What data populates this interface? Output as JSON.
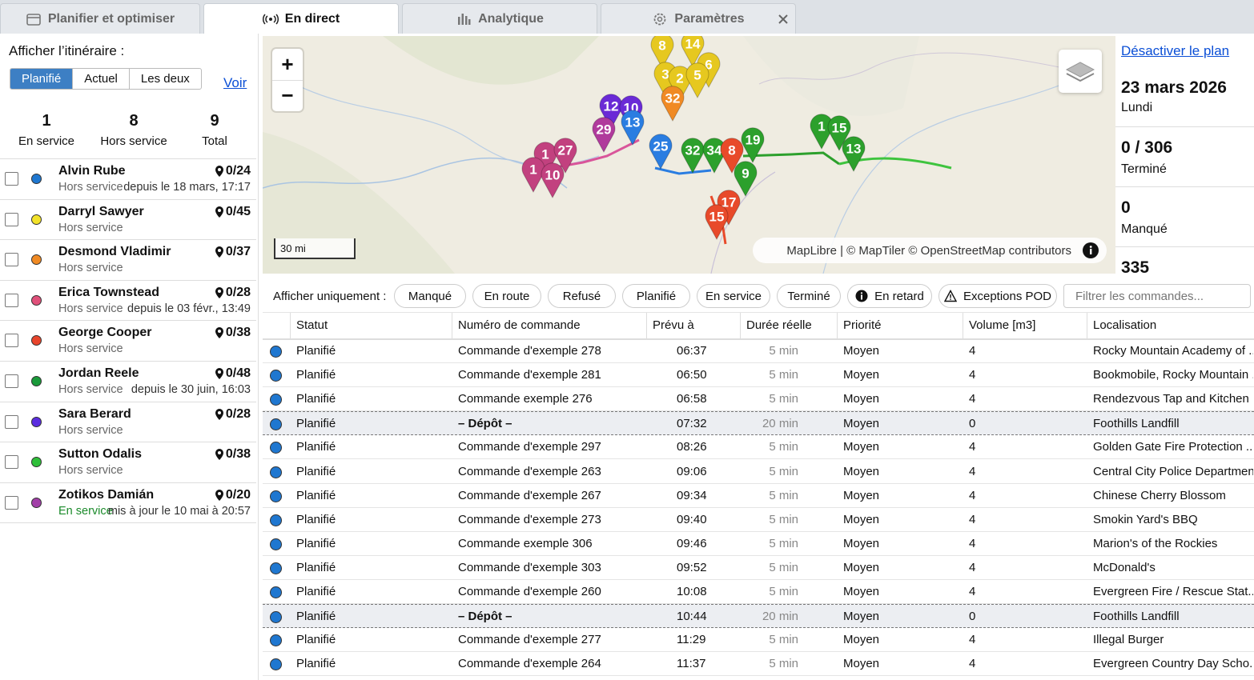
{
  "tabs": [
    "Planifier et optimiser",
    "En direct",
    "Analytique",
    "Paramètres"
  ],
  "active_tab": 1,
  "sidebar": {
    "route_label": "Afficher l’itinéraire :",
    "route_toggle": [
      "Planifié",
      "Actuel",
      "Les deux"
    ],
    "route_toggle_active": 0,
    "view_link": "Voir",
    "stats": [
      {
        "value": 1,
        "label": "En service"
      },
      {
        "value": 8,
        "label": "Hors service"
      },
      {
        "value": 9,
        "label": "Total"
      }
    ],
    "drivers": [
      {
        "name": "Alvin Rube",
        "stops": "0/24",
        "status": "Hors service",
        "since": "depuis le 18 mars, 17:17",
        "color": "#1f77d0"
      },
      {
        "name": "Darryl Sawyer",
        "stops": "0/45",
        "status": "Hors service",
        "color": "#f2e22a"
      },
      {
        "name": "Desmond Vladimir",
        "stops": "0/37",
        "status": "Hors service",
        "color": "#f08a24"
      },
      {
        "name": "Erica Townstead",
        "stops": "0/28",
        "status": "Hors service",
        "since": "depuis le 03 févr., 13:49",
        "color": "#e0507a"
      },
      {
        "name": "George Cooper",
        "stops": "0/38",
        "status": "Hors service",
        "color": "#e8452c"
      },
      {
        "name": "Jordan Reele",
        "stops": "0/48",
        "status": "Hors service",
        "since": "depuis le 30 juin, 16:03",
        "color": "#1a9a3a"
      },
      {
        "name": "Sara Berard",
        "stops": "0/28",
        "status": "Hors service",
        "color": "#5b2de0"
      },
      {
        "name": "Sutton Odalis",
        "stops": "0/38",
        "status": "Hors service",
        "color": "#2fbf3a"
      },
      {
        "name": "Zotikos Damián",
        "stops": "0/20",
        "status": "En service",
        "since": "mis à jour le 10 mai à 20:57",
        "color": "#a23fa8"
      }
    ]
  },
  "map": {
    "zoom_in": "+",
    "zoom_out": "−",
    "scale": "30 mi",
    "attribution": "MapLibre | © MapTiler © OpenStreetMap contributors",
    "markers": [
      {
        "label": "8",
        "color": "#e6c81f"
      },
      {
        "label": "14",
        "color": "#e6c81f"
      },
      {
        "label": "3",
        "color": "#e6c81f"
      },
      {
        "label": "6",
        "color": "#e6c81f"
      },
      {
        "label": "2",
        "color": "#e6c81f"
      },
      {
        "label": "5",
        "color": "#e6c81f"
      },
      {
        "label": "12",
        "color": "#6a2ad6"
      },
      {
        "label": "10",
        "color": "#6a2ad6"
      },
      {
        "label": "32",
        "color": "#f08a24"
      },
      {
        "label": "29",
        "color": "#b03a9c"
      },
      {
        "label": "13",
        "color": "#2a7de1"
      },
      {
        "label": "25",
        "color": "#2a7de1"
      },
      {
        "label": "1",
        "color": "#c2417f"
      },
      {
        "label": "27",
        "color": "#c2417f"
      },
      {
        "label": "1",
        "color": "#c2417f"
      },
      {
        "label": "10",
        "color": "#c2417f"
      },
      {
        "label": "19",
        "color": "#2ca02c"
      },
      {
        "label": "32",
        "color": "#2ca02c"
      },
      {
        "label": "34",
        "color": "#2ca02c"
      },
      {
        "label": "8",
        "color": "#e84a2a"
      },
      {
        "label": "9",
        "color": "#2ca02c"
      },
      {
        "label": "17",
        "color": "#e84a2a"
      },
      {
        "label": "15",
        "color": "#e84a2a"
      },
      {
        "label": "1",
        "color": "#2ca02c"
      },
      {
        "label": "15",
        "color": "#2ca02c"
      },
      {
        "label": "13",
        "color": "#2ca02c"
      }
    ]
  },
  "summary": {
    "disable_link": "Désactiver le plan",
    "date": "23 mars 2026",
    "weekday": "Lundi",
    "items": [
      {
        "value": "0 / 306",
        "label": "Terminé"
      },
      {
        "value": "0",
        "label": "Manqué"
      },
      {
        "value": "335"
      }
    ]
  },
  "filters": {
    "label": "Afficher uniquement :",
    "buttons": [
      "Manqué",
      "En route",
      "Refusé",
      "Planifié",
      "En service",
      "Terminé",
      "En retard",
      "Exceptions POD"
    ],
    "search_placeholder": "Filtrer les commandes..."
  },
  "table": {
    "headers": [
      "Statut",
      "Numéro de commande",
      "Prévu à",
      "Durée réelle",
      "Priorité",
      "Volume [m3]",
      "Localisation"
    ],
    "rows": [
      [
        "Planifié",
        "Commande d'exemple 278",
        "06:37",
        "5 min",
        "Moyen",
        "4",
        "Rocky Mountain Academy of ..."
      ],
      [
        "Planifié",
        "Commande d'exemple 281",
        "06:50",
        "5 min",
        "Moyen",
        "4",
        "Bookmobile, Rocky Mountain ..."
      ],
      [
        "Planifié",
        "Commande exemple 276",
        "06:58",
        "5 min",
        "Moyen",
        "4",
        "Rendezvous Tap and Kitchen"
      ],
      [
        "Planifié",
        "– Dépôt –",
        "07:32",
        "20 min",
        "Moyen",
        "0",
        "Foothills Landfill"
      ],
      [
        "Planifié",
        "Commande d'exemple 297",
        "08:26",
        "5 min",
        "Moyen",
        "4",
        "Golden Gate Fire Protection ..."
      ],
      [
        "Planifié",
        "Commande d'exemple 263",
        "09:06",
        "5 min",
        "Moyen",
        "4",
        "Central City Police Department"
      ],
      [
        "Planifié",
        "Commande d'exemple 267",
        "09:34",
        "5 min",
        "Moyen",
        "4",
        "Chinese Cherry Blossom"
      ],
      [
        "Planifié",
        "Commande d'exemple 273",
        "09:40",
        "5 min",
        "Moyen",
        "4",
        "Smokin Yard's BBQ"
      ],
      [
        "Planifié",
        "Commande exemple 306",
        "09:46",
        "5 min",
        "Moyen",
        "4",
        "Marion's of the Rockies"
      ],
      [
        "Planifié",
        "Commande d'exemple 303",
        "09:52",
        "5 min",
        "Moyen",
        "4",
        "McDonald's"
      ],
      [
        "Planifié",
        "Commande d'exemple 260",
        "10:08",
        "5 min",
        "Moyen",
        "4",
        "Evergreen Fire / Rescue Stat..."
      ],
      [
        "Planifié",
        "– Dépôt –",
        "10:44",
        "20 min",
        "Moyen",
        "0",
        "Foothills Landfill"
      ],
      [
        "Planifié",
        "Commande d'exemple 277",
        "11:29",
        "5 min",
        "Moyen",
        "4",
        "Illegal Burger"
      ],
      [
        "Planifié",
        "Commande d'exemple 264",
        "11:37",
        "5 min",
        "Moyen",
        "4",
        "Evergreen Country Day Scho..."
      ]
    ],
    "highlighted_rows": [
      3,
      11
    ],
    "status_color": "#1f77d0"
  }
}
